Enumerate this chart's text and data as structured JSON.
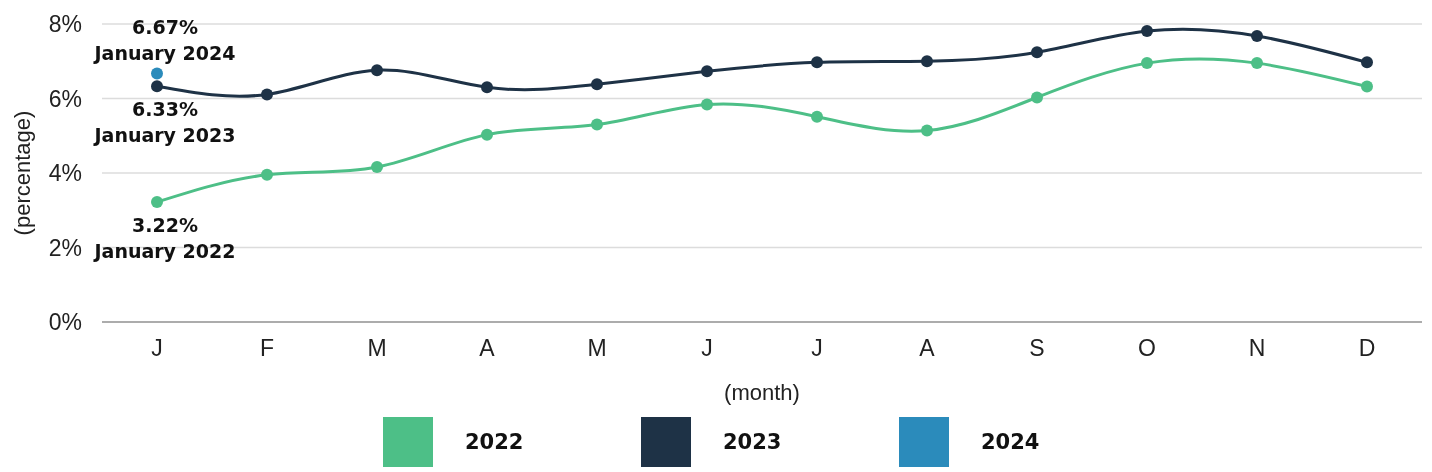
{
  "chart_data": {
    "type": "line",
    "categories": [
      "J",
      "F",
      "M",
      "A",
      "M",
      "J",
      "J",
      "A",
      "S",
      "O",
      "N",
      "D"
    ],
    "series": [
      {
        "name": "2022",
        "color": "#4dbf87",
        "values": [
          3.22,
          3.95,
          4.16,
          5.03,
          5.3,
          5.84,
          5.51,
          5.14,
          6.03,
          6.95,
          6.95,
          6.32
        ],
        "value_labels": [
          "3.22%\nJanuary 2022",
          null,
          null,
          null,
          null,
          null,
          null,
          null,
          null,
          null,
          null,
          null
        ]
      },
      {
        "name": "2023",
        "color": "#1e3246",
        "values": [
          6.33,
          6.11,
          6.76,
          6.3,
          6.38,
          6.73,
          6.97,
          7.0,
          7.24,
          7.81,
          7.68,
          6.97
        ],
        "value_labels": [
          "6.33%\nJanuary 2023",
          null,
          null,
          null,
          null,
          null,
          null,
          null,
          null,
          null,
          null,
          null
        ]
      },
      {
        "name": "2024",
        "color": "#2b8bbb",
        "values": [
          6.67,
          null,
          null,
          null,
          null,
          null,
          null,
          null,
          null,
          null,
          null,
          null
        ],
        "value_labels": [
          "6.67%\nJanuary 2024",
          null,
          null,
          null,
          null,
          null,
          null,
          null,
          null,
          null,
          null,
          null
        ]
      }
    ],
    "xlabel": "(month)",
    "ylabel": "(percentage)",
    "ylim": [
      0,
      8
    ],
    "yticks": [
      {
        "value": 0,
        "label": "0%"
      },
      {
        "value": 2,
        "label": "2%"
      },
      {
        "value": 4,
        "label": "4%"
      },
      {
        "value": 6,
        "label": "6%"
      },
      {
        "value": 8,
        "label": "8%"
      }
    ],
    "grid": "y",
    "legend": "bottom",
    "marker": "circle"
  }
}
